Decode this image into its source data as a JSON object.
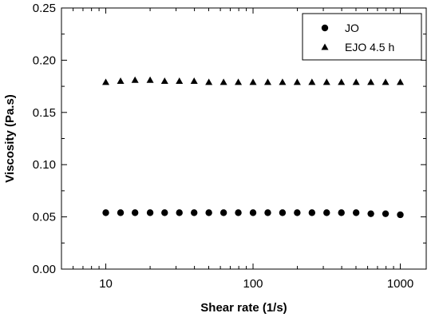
{
  "chart_data": {
    "type": "scatter",
    "xlabel": "Shear rate (1/s)",
    "ylabel": "Viscosity (Pa.s)",
    "x_scale": "log",
    "xlim": [
      5,
      1500
    ],
    "ylim": [
      0,
      0.25
    ],
    "x_ticks": [
      10,
      100,
      1000
    ],
    "x_tick_labels": [
      "10",
      "100",
      "1000"
    ],
    "y_ticks": [
      0,
      0.05,
      0.1,
      0.15,
      0.2,
      0.25
    ],
    "y_tick_labels": [
      "0.00",
      "0.05",
      "0.10",
      "0.15",
      "0.20",
      "0.25"
    ],
    "grid": false,
    "legend_position": "top-right",
    "series": [
      {
        "name": "JO",
        "marker": "circle",
        "x": [
          10,
          12.6,
          15.8,
          20,
          25.1,
          31.6,
          39.8,
          50.1,
          63.1,
          79.4,
          100,
          125.9,
          158.5,
          199.5,
          251.2,
          316.2,
          398.1,
          501.2,
          631,
          794.3,
          1000
        ],
        "y": [
          0.054,
          0.054,
          0.054,
          0.054,
          0.054,
          0.054,
          0.054,
          0.054,
          0.054,
          0.054,
          0.054,
          0.054,
          0.054,
          0.054,
          0.054,
          0.054,
          0.054,
          0.054,
          0.053,
          0.053,
          0.052
        ]
      },
      {
        "name": "EJO 4.5 h",
        "marker": "triangle",
        "x": [
          10,
          12.6,
          15.8,
          20,
          25.1,
          31.6,
          39.8,
          50.1,
          63.1,
          79.4,
          100,
          125.9,
          158.5,
          199.5,
          251.2,
          316.2,
          398.1,
          501.2,
          631,
          794.3,
          1000
        ],
        "y": [
          0.179,
          0.18,
          0.181,
          0.181,
          0.18,
          0.18,
          0.18,
          0.179,
          0.179,
          0.179,
          0.179,
          0.179,
          0.179,
          0.179,
          0.179,
          0.179,
          0.179,
          0.179,
          0.179,
          0.179,
          0.179
        ]
      }
    ]
  }
}
